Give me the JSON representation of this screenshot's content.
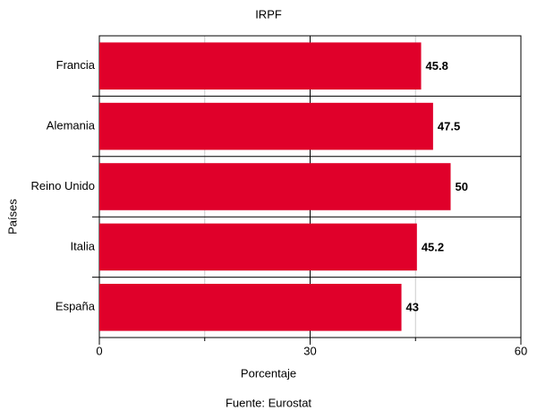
{
  "chart_data": {
    "type": "hbar",
    "title": "IRPF",
    "x_label": "Porcentaje",
    "y_label": "Países",
    "annotation": "Fuente: Eurostat",
    "categories": [
      "Francia",
      "Alemania",
      "Reino Unido",
      "Italia",
      "España"
    ],
    "values": [
      45.8,
      47.5,
      50,
      45.2,
      43
    ],
    "color": "#e0002a",
    "xlim": [
      0,
      60
    ],
    "xticks": [
      0,
      30,
      60
    ],
    "minor_xticks": [
      15,
      45
    ],
    "grid": true
  }
}
